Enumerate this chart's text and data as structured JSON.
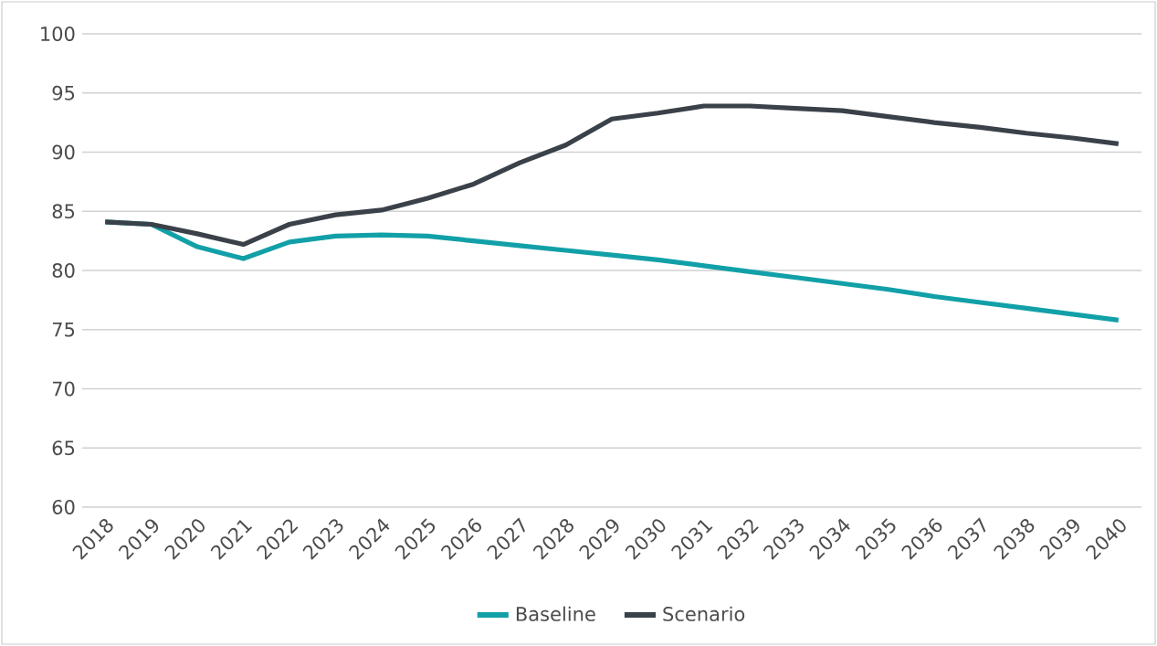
{
  "chart_data": {
    "type": "line",
    "categories": [
      "2018",
      "2019",
      "2020",
      "2021",
      "2022",
      "2023",
      "2024",
      "2025",
      "2026",
      "2027",
      "2028",
      "2029",
      "2030",
      "2031",
      "2032",
      "2033",
      "2034",
      "2035",
      "2036",
      "2037",
      "2038",
      "2039",
      "2040"
    ],
    "series": [
      {
        "name": "Baseline",
        "color": "#12a0a8",
        "values": [
          84.1,
          83.9,
          82.0,
          81.0,
          82.4,
          82.9,
          83.0,
          82.9,
          82.5,
          82.1,
          81.7,
          81.3,
          80.9,
          80.4,
          79.9,
          79.4,
          78.9,
          78.4,
          77.8,
          77.3,
          76.8,
          76.3,
          75.8
        ]
      },
      {
        "name": "Scenario",
        "color": "#3a4149",
        "values": [
          84.1,
          83.9,
          83.1,
          82.2,
          83.9,
          84.7,
          85.1,
          86.1,
          87.3,
          89.1,
          90.6,
          92.8,
          93.3,
          93.9,
          93.9,
          93.7,
          93.5,
          93.0,
          92.5,
          92.1,
          91.6,
          91.2,
          90.7
        ]
      }
    ],
    "ylim": [
      60,
      100
    ],
    "yticks": [
      60,
      65,
      70,
      75,
      80,
      85,
      90,
      95,
      100
    ],
    "grid": "y",
    "legend": "bottom",
    "marker": "none",
    "line_style": "solid"
  }
}
